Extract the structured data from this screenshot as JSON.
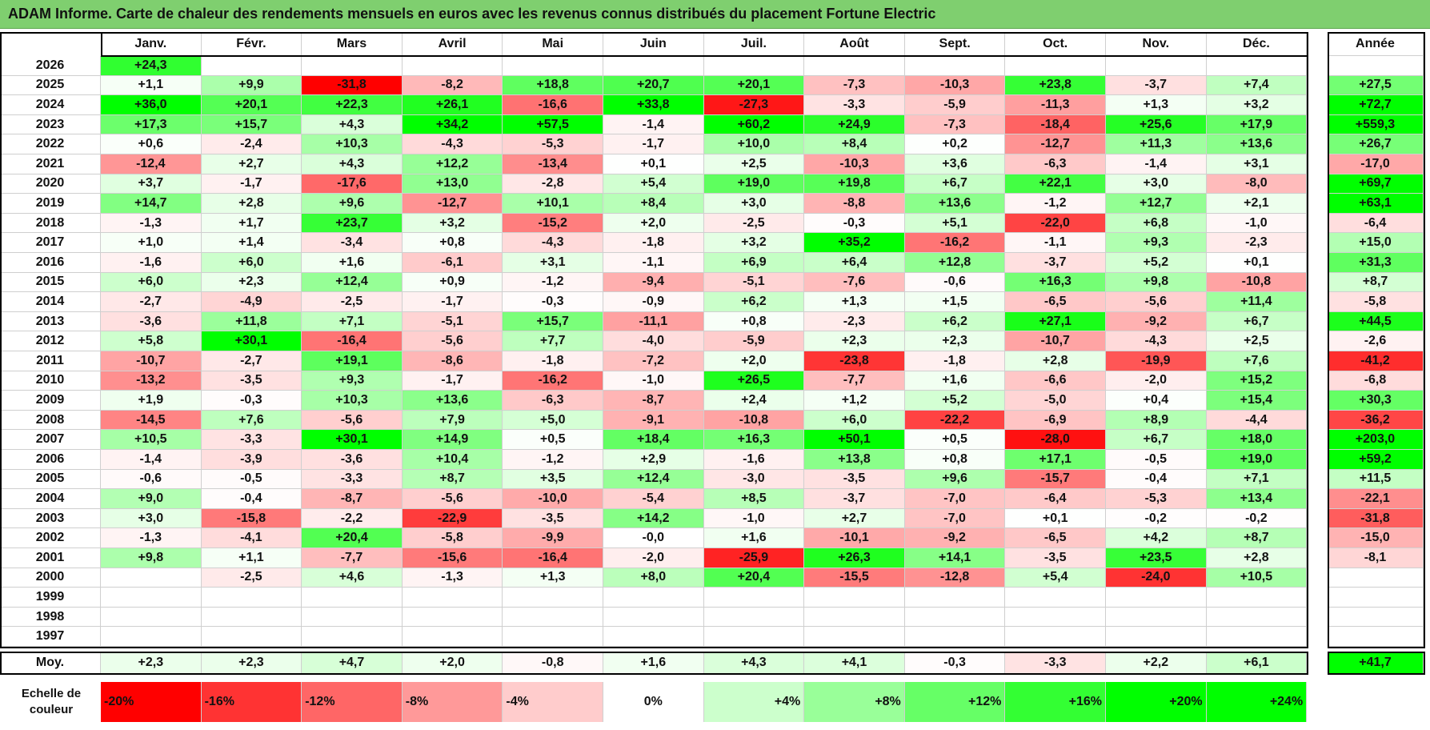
{
  "title": "ADAM Informe. Carte de chaleur des rendements mensuels en euros avec les revenus connus distribués du placement Fortune Electric",
  "months": [
    "Janv.",
    "Févr.",
    "Mars",
    "Avril",
    "Mai",
    "Juin",
    "Juil.",
    "Août",
    "Sept.",
    "Oct.",
    "Nov.",
    "Déc."
  ],
  "annual_header": "Année",
  "avg_label": "Moy.",
  "scale_label": "Echelle de couleur",
  "colors": {
    "negative_max": "#ff0000",
    "neutral": "#ffffff",
    "positive_max": "#00ff00",
    "title_bg": "#7fcf6f"
  },
  "chart_data": {
    "type": "heatmap",
    "title": "ADAM Informe. Carte de chaleur des rendements mensuels en euros avec les revenus connus distribués du placement Fortune Electric",
    "x_categories": [
      "Janv.",
      "Févr.",
      "Mars",
      "Avril",
      "Mai",
      "Juin",
      "Juil.",
      "Août",
      "Sept.",
      "Oct.",
      "Nov.",
      "Déc.",
      "Année"
    ],
    "rows": [
      {
        "year": "2026",
        "values": [
          24.3,
          null,
          null,
          null,
          null,
          null,
          null,
          null,
          null,
          null,
          null,
          null
        ],
        "annual": null
      },
      {
        "year": "2025",
        "values": [
          1.1,
          9.9,
          -31.8,
          -8.2,
          18.8,
          20.7,
          20.1,
          -7.3,
          -10.3,
          23.8,
          -3.7,
          7.4
        ],
        "annual": 27.5
      },
      {
        "year": "2024",
        "values": [
          36.0,
          20.1,
          22.3,
          26.1,
          -16.6,
          33.8,
          -27.3,
          -3.3,
          -5.9,
          -11.3,
          1.3,
          3.2
        ],
        "annual": 72.7
      },
      {
        "year": "2023",
        "values": [
          17.3,
          15.7,
          4.3,
          34.2,
          57.5,
          -1.4,
          60.2,
          24.9,
          -7.3,
          -18.4,
          25.6,
          17.9
        ],
        "annual": 559.3
      },
      {
        "year": "2022",
        "values": [
          0.6,
          -2.4,
          10.3,
          -4.3,
          -5.3,
          -1.7,
          10.0,
          8.4,
          0.2,
          -12.7,
          11.3,
          13.6
        ],
        "annual": 26.7
      },
      {
        "year": "2021",
        "values": [
          -12.4,
          2.7,
          4.3,
          12.2,
          -13.4,
          0.1,
          2.5,
          -10.3,
          3.6,
          -6.3,
          -1.4,
          3.1
        ],
        "annual": -17.0
      },
      {
        "year": "2020",
        "values": [
          3.7,
          -1.7,
          -17.6,
          13.0,
          -2.8,
          5.4,
          19.0,
          19.8,
          6.7,
          22.1,
          3.0,
          -8.0
        ],
        "annual": 69.7
      },
      {
        "year": "2019",
        "values": [
          14.7,
          2.8,
          9.6,
          -12.7,
          10.1,
          8.4,
          3.0,
          -8.8,
          13.6,
          -1.2,
          12.7,
          2.1
        ],
        "annual": 63.1
      },
      {
        "year": "2018",
        "values": [
          -1.3,
          1.7,
          23.7,
          3.2,
          -15.2,
          2.0,
          -2.5,
          -0.3,
          5.1,
          -22.0,
          6.8,
          -1.0
        ],
        "annual": -6.4
      },
      {
        "year": "2017",
        "values": [
          1.0,
          1.4,
          -3.4,
          0.8,
          -4.3,
          -1.8,
          3.2,
          35.2,
          -16.2,
          -1.1,
          9.3,
          -2.3
        ],
        "annual": 15.0
      },
      {
        "year": "2016",
        "values": [
          -1.6,
          6.0,
          1.6,
          -6.1,
          3.1,
          -1.1,
          6.9,
          6.4,
          12.8,
          -3.7,
          5.2,
          0.1
        ],
        "annual": 31.3
      },
      {
        "year": "2015",
        "values": [
          6.0,
          2.3,
          12.4,
          0.9,
          -1.2,
          -9.4,
          -5.1,
          -7.6,
          -0.6,
          16.3,
          9.8,
          -10.8
        ],
        "annual": 8.7
      },
      {
        "year": "2014",
        "values": [
          -2.7,
          -4.9,
          -2.5,
          -1.7,
          -0.3,
          -0.9,
          6.2,
          1.3,
          1.5,
          -6.5,
          -5.6,
          11.4
        ],
        "annual": -5.8
      },
      {
        "year": "2013",
        "values": [
          -3.6,
          11.8,
          7.1,
          -5.1,
          15.7,
          -11.1,
          0.8,
          -2.3,
          6.2,
          27.1,
          -9.2,
          6.7
        ],
        "annual": 44.5
      },
      {
        "year": "2012",
        "values": [
          5.8,
          30.1,
          -16.4,
          -5.6,
          7.7,
          -4.0,
          -5.9,
          2.3,
          2.3,
          -10.7,
          -4.3,
          2.5
        ],
        "annual": -2.6
      },
      {
        "year": "2011",
        "values": [
          -10.7,
          -2.7,
          19.1,
          -8.6,
          -1.8,
          -7.2,
          2.0,
          -23.8,
          -1.8,
          2.8,
          -19.9,
          7.6
        ],
        "annual": -41.2
      },
      {
        "year": "2010",
        "values": [
          -13.2,
          -3.5,
          9.3,
          -1.7,
          -16.2,
          -1.0,
          26.5,
          -7.7,
          1.6,
          -6.6,
          -2.0,
          15.2
        ],
        "annual": -6.8
      },
      {
        "year": "2009",
        "values": [
          1.9,
          -0.3,
          10.3,
          13.6,
          -6.3,
          -8.7,
          2.4,
          1.2,
          5.2,
          -5.0,
          0.4,
          15.4
        ],
        "annual": 30.3
      },
      {
        "year": "2008",
        "values": [
          -14.5,
          7.6,
          -5.6,
          7.9,
          5.0,
          -9.1,
          -10.8,
          6.0,
          -22.2,
          -6.9,
          8.9,
          -4.4
        ],
        "annual": -36.2
      },
      {
        "year": "2007",
        "values": [
          10.5,
          -3.3,
          30.1,
          14.9,
          0.5,
          18.4,
          16.3,
          50.1,
          0.5,
          -28.0,
          6.7,
          18.0
        ],
        "annual": 203.0
      },
      {
        "year": "2006",
        "values": [
          -1.4,
          -3.9,
          -3.6,
          10.4,
          -1.2,
          2.9,
          -1.6,
          13.8,
          0.8,
          17.1,
          -0.5,
          19.0
        ],
        "annual": 59.2
      },
      {
        "year": "2005",
        "values": [
          -0.6,
          -0.5,
          -3.3,
          8.7,
          3.5,
          12.4,
          -3.0,
          -3.5,
          9.6,
          -15.7,
          -0.4,
          7.1
        ],
        "annual": 11.5
      },
      {
        "year": "2004",
        "values": [
          9.0,
          -0.4,
          -8.7,
          -5.6,
          -10.0,
          -5.4,
          8.5,
          -3.7,
          -7.0,
          -6.4,
          -5.3,
          13.4
        ],
        "annual": -22.1
      },
      {
        "year": "2003",
        "values": [
          3.0,
          -15.8,
          -2.2,
          -22.9,
          -3.5,
          14.2,
          -1.0,
          2.7,
          -7.0,
          0.1,
          -0.2,
          -0.2
        ],
        "annual": -31.8
      },
      {
        "year": "2002",
        "values": [
          -1.3,
          -4.1,
          20.4,
          -5.8,
          -9.9,
          -0.0,
          1.6,
          -10.1,
          -9.2,
          -6.5,
          4.2,
          8.7
        ],
        "annual": -15.0
      },
      {
        "year": "2001",
        "values": [
          9.8,
          1.1,
          -7.7,
          -15.6,
          -16.4,
          -2.0,
          -25.9,
          26.3,
          14.1,
          -3.5,
          23.5,
          2.8
        ],
        "annual": -8.1
      },
      {
        "year": "2000",
        "values": [
          null,
          -2.5,
          4.6,
          -1.3,
          1.3,
          8.0,
          20.4,
          -15.5,
          -12.8,
          5.4,
          -24.0,
          10.5
        ],
        "annual": null
      },
      {
        "year": "1999",
        "values": [
          null,
          null,
          null,
          null,
          null,
          null,
          null,
          null,
          null,
          null,
          null,
          null
        ],
        "annual": null
      },
      {
        "year": "1998",
        "values": [
          null,
          null,
          null,
          null,
          null,
          null,
          null,
          null,
          null,
          null,
          null,
          null
        ],
        "annual": null
      },
      {
        "year": "1997",
        "values": [
          null,
          null,
          null,
          null,
          null,
          null,
          null,
          null,
          null,
          null,
          null,
          null
        ],
        "annual": null
      }
    ],
    "averages": [
      2.3,
      2.3,
      4.7,
      2.0,
      -0.8,
      1.6,
      4.3,
      4.1,
      -0.3,
      -3.3,
      2.2,
      6.1
    ],
    "average_annual": 41.7,
    "color_scale": {
      "labels": [
        "-20%",
        "-16%",
        "-12%",
        "-8%",
        "-4%",
        "0%",
        "+4%",
        "+8%",
        "+12%",
        "+16%",
        "+20%",
        "+24%"
      ],
      "values": [
        -20,
        -16,
        -12,
        -8,
        -4,
        0,
        4,
        8,
        12,
        16,
        20,
        24
      ]
    }
  }
}
